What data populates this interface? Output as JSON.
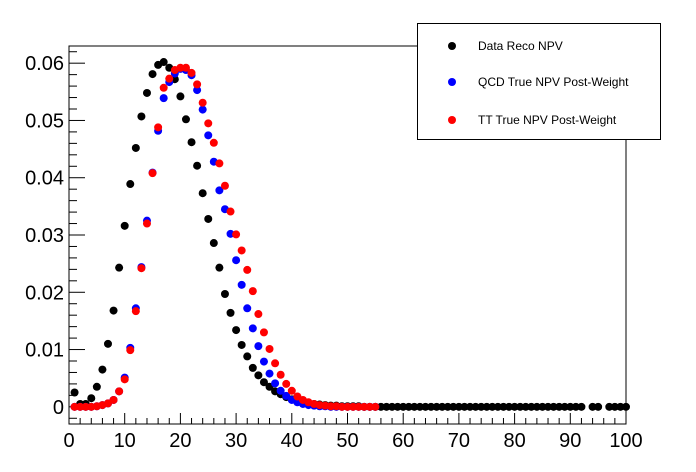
{
  "chart_data": {
    "type": "scatter",
    "title": "",
    "xlabel": "",
    "ylabel": "",
    "xlim": [
      0,
      100
    ],
    "ylim": [
      -0.003,
      0.063
    ],
    "xticks": [
      0,
      10,
      20,
      30,
      40,
      50,
      60,
      70,
      80,
      90,
      100
    ],
    "yticks": [
      0,
      0.01,
      0.02,
      0.03,
      0.04,
      0.05,
      0.06
    ],
    "ytick_labels": [
      "0",
      "0.01",
      "0.02",
      "0.03",
      "0.04",
      "0.05",
      "0.06"
    ],
    "grid": false,
    "legend_position": "top-right",
    "series": [
      {
        "name": "Data Reco NPV",
        "color": "#000000",
        "x": [
          1,
          2,
          3,
          4,
          5,
          6,
          7,
          8,
          9,
          10,
          11,
          12,
          13,
          14,
          15,
          16,
          17,
          18,
          19,
          20,
          21,
          22,
          23,
          24,
          25,
          26,
          27,
          28,
          29,
          30,
          31,
          32,
          33,
          34,
          35,
          36,
          37,
          38,
          39,
          40,
          41,
          42,
          43,
          44,
          45,
          46,
          47,
          48,
          49,
          50,
          51,
          52,
          53,
          54,
          55,
          56,
          57,
          58,
          59,
          60,
          61,
          62,
          63,
          64,
          65,
          66,
          67,
          68,
          69,
          70,
          71,
          72,
          73,
          74,
          75,
          76,
          77,
          78,
          79,
          80,
          81,
          82,
          83,
          84,
          85,
          86,
          87,
          88,
          89,
          90,
          91,
          92,
          94,
          95,
          97,
          98,
          99,
          100
        ],
        "values": [
          0.0025,
          0.0005,
          0.0005,
          0.0015,
          0.0035,
          0.0065,
          0.011,
          0.0168,
          0.0243,
          0.0316,
          0.0389,
          0.0452,
          0.0507,
          0.0548,
          0.0581,
          0.0597,
          0.0602,
          0.0592,
          0.0572,
          0.0542,
          0.0502,
          0.0462,
          0.0421,
          0.0373,
          0.0328,
          0.0286,
          0.0243,
          0.0197,
          0.0164,
          0.0134,
          0.0108,
          0.0088,
          0.0068,
          0.0055,
          0.0043,
          0.0035,
          0.0027,
          0.0022,
          0.0017,
          0.0013,
          0.001,
          0.0008,
          0.0006,
          0.0005,
          0.0004,
          0.0003,
          0.0002,
          0.0002,
          0.0001,
          0.0001,
          0.0001,
          0.0001,
          0,
          0,
          0,
          0,
          0,
          0,
          0,
          0,
          0,
          0,
          0,
          0,
          0,
          0,
          0,
          0,
          0,
          0,
          0,
          0,
          0,
          0,
          0,
          0,
          0,
          0,
          0,
          0,
          0,
          0,
          0,
          0,
          0,
          0,
          0,
          0,
          0,
          0,
          0,
          0,
          0,
          0,
          0,
          0,
          0,
          0
        ]
      },
      {
        "name": "QCD True NPV Post-Weight",
        "color": "#0000ff",
        "x": [
          1,
          2,
          3,
          4,
          5,
          6,
          7,
          8,
          9,
          10,
          11,
          12,
          13,
          14,
          15,
          16,
          17,
          18,
          19,
          20,
          21,
          22,
          23,
          24,
          25,
          26,
          27,
          28,
          29,
          30,
          31,
          32,
          33,
          34,
          35,
          36,
          37,
          38,
          39,
          40,
          41,
          42,
          43,
          44,
          45,
          46,
          47,
          48,
          49,
          50,
          51,
          52,
          53,
          54,
          55
        ],
        "values": [
          0,
          0,
          0,
          0,
          0.0001,
          0.0003,
          0.0006,
          0.0012,
          0.0027,
          0.0051,
          0.0103,
          0.0172,
          0.0244,
          0.0325,
          0.0409,
          0.0482,
          0.0539,
          0.0567,
          0.0582,
          0.059,
          0.0588,
          0.0579,
          0.0553,
          0.0519,
          0.0474,
          0.0428,
          0.0378,
          0.0345,
          0.0302,
          0.0256,
          0.0213,
          0.0172,
          0.0137,
          0.0106,
          0.0079,
          0.0058,
          0.0041,
          0.0028,
          0.0019,
          0.0012,
          0.0008,
          0.0005,
          0.0003,
          0.0002,
          0.0001,
          0.0001,
          0,
          0,
          0,
          0,
          0,
          0,
          0,
          0,
          0
        ]
      },
      {
        "name": "TT True NPV Post-Weight",
        "color": "#ff0000",
        "x": [
          1,
          2,
          3,
          4,
          5,
          6,
          7,
          8,
          9,
          10,
          11,
          12,
          13,
          14,
          15,
          16,
          17,
          18,
          19,
          20,
          21,
          22,
          23,
          24,
          25,
          26,
          27,
          28,
          29,
          30,
          31,
          32,
          33,
          34,
          35,
          36,
          37,
          38,
          39,
          40,
          41,
          42,
          43,
          44,
          45,
          46,
          47,
          48,
          49,
          50,
          51,
          52,
          53,
          54,
          55
        ],
        "values": [
          0,
          0,
          0,
          0,
          0.0001,
          0.0003,
          0.0006,
          0.0012,
          0.0027,
          0.0048,
          0.0099,
          0.0167,
          0.0242,
          0.032,
          0.0408,
          0.0488,
          0.0557,
          0.0573,
          0.0588,
          0.0592,
          0.0592,
          0.0583,
          0.0563,
          0.0531,
          0.0495,
          0.0461,
          0.0425,
          0.0386,
          0.0341,
          0.0301,
          0.0273,
          0.0239,
          0.0202,
          0.0162,
          0.013,
          0.0101,
          0.0076,
          0.0056,
          0.004,
          0.0028,
          0.0018,
          0.0012,
          0.0008,
          0.0005,
          0.0003,
          0.0002,
          0.0001,
          0.0001,
          0,
          0,
          0,
          0,
          0,
          0,
          0
        ]
      }
    ]
  }
}
